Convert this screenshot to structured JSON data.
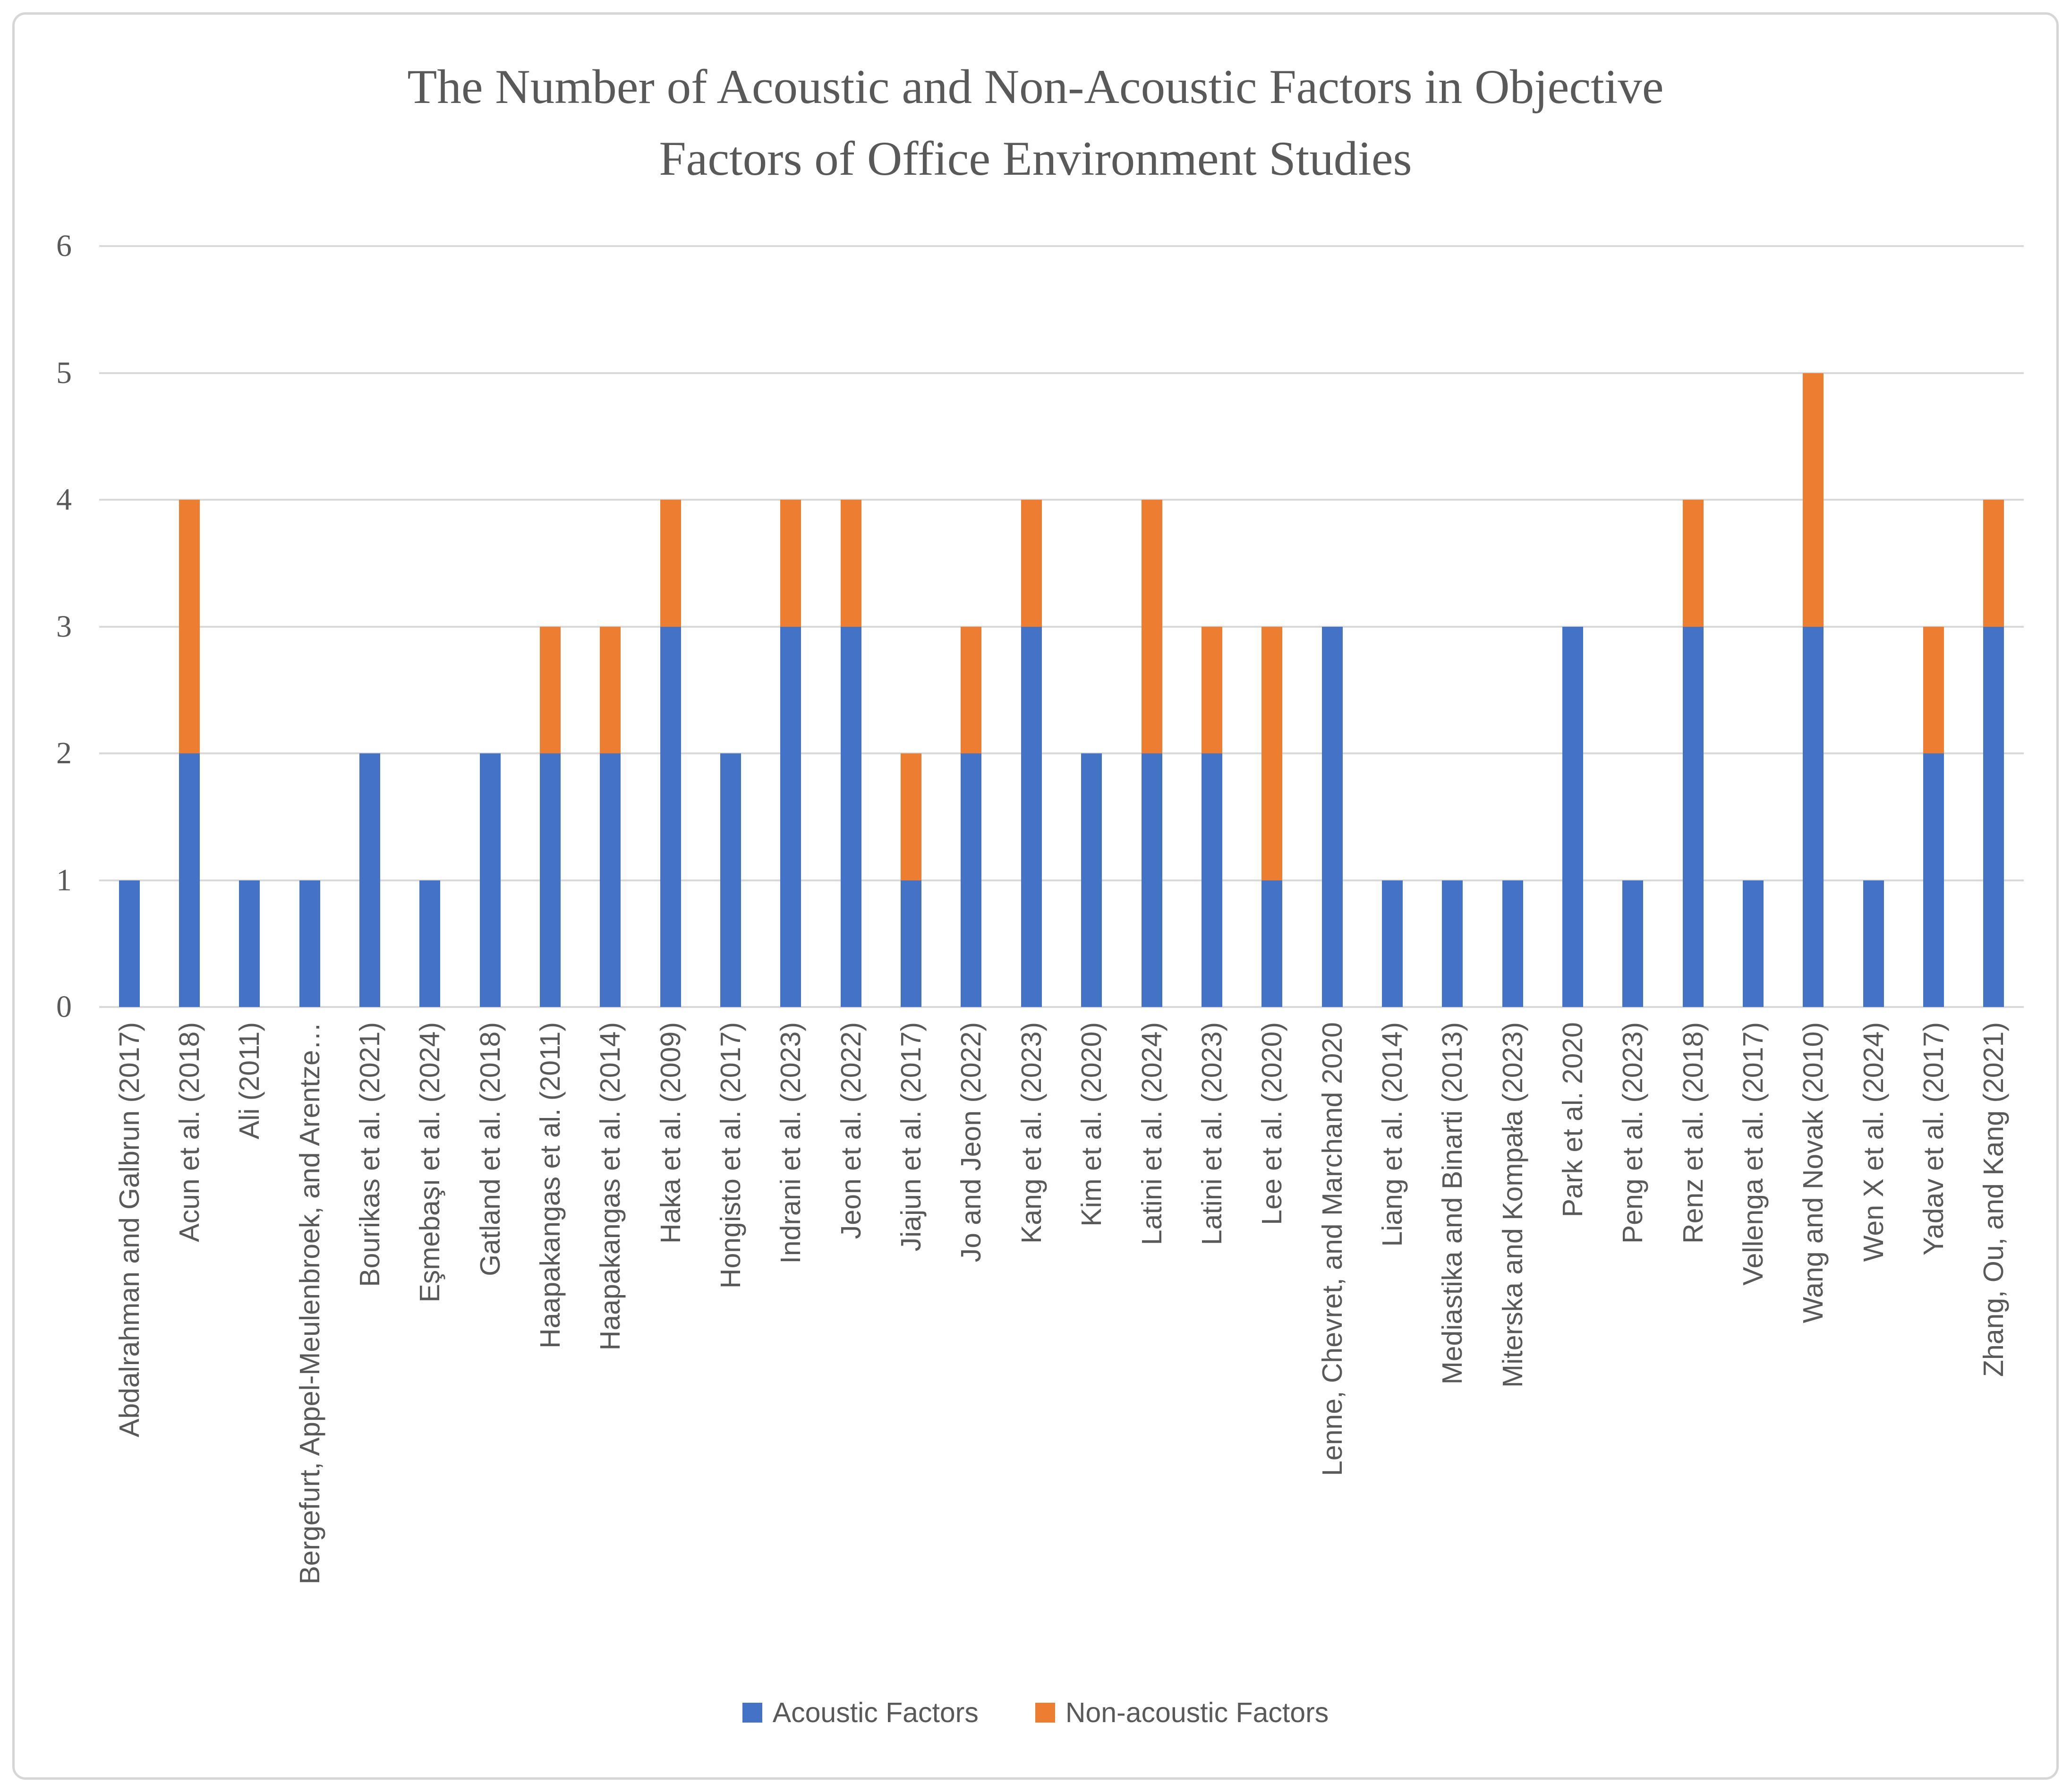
{
  "chart_data": {
    "type": "bar",
    "stacked": true,
    "title": "The Number of Acoustic and Non-Acoustic Factors in Objective Factors of Office Environment Studies",
    "title_lines": [
      "The Number of Acoustic and Non-Acoustic Factors in Objective",
      "Factors of Office Environment Studies"
    ],
    "categories": [
      "Abdalrahman and Galbrun (2017)",
      "Acun et al. (2018)",
      "Ali (2011)",
      "Bergefurt, Appel-Meulenbroek, and Arentze…",
      "Bourikas et al. (2021)",
      "Eşmebaşı et al. (2024)",
      "Gatland et al. (2018)",
      "Haapakangas et al. (2011)",
      "Haapakangas et al. (2014)",
      "Haka et al. (2009)",
      "Hongisto et al. (2017)",
      "Indrani et al. (2023)",
      "Jeon et al. (2022)",
      "Jiajun et al. (2017)",
      "Jo and Jeon (2022)",
      "Kang et al. (2023)",
      "Kim et al. (2020)",
      "Latini et al. (2024)",
      "Latini et al. (2023)",
      "Lee et al. (2020)",
      "Lenne, Chevret, and Marchand 2020",
      "Liang et al. (2014)",
      "Mediastika and Binarti (2013)",
      "Miterska and Kompała (2023)",
      "Park et al. 2020",
      "Peng et al. (2023)",
      "Renz et al. (2018)",
      "Vellenga et al. (2017)",
      "Wang and Novak (2010)",
      "Wen X et al. (2024)",
      "Yadav et al. (2017)",
      "Zhang, Ou, and Kang (2021)"
    ],
    "series": [
      {
        "name": "Acoustic Factors",
        "color": "#4472C4",
        "values": [
          1,
          2,
          1,
          1,
          2,
          1,
          2,
          2,
          2,
          3,
          2,
          3,
          3,
          1,
          2,
          3,
          2,
          2,
          2,
          1,
          3,
          1,
          1,
          1,
          3,
          1,
          3,
          1,
          3,
          1,
          2,
          3
        ]
      },
      {
        "name": "Non-acoustic Factors",
        "color": "#ED7D31",
        "values": [
          0,
          2,
          0,
          0,
          0,
          0,
          0,
          1,
          1,
          1,
          0,
          1,
          1,
          1,
          1,
          1,
          0,
          2,
          1,
          2,
          0,
          0,
          0,
          0,
          0,
          0,
          1,
          0,
          2,
          0,
          1,
          1
        ]
      }
    ],
    "ylim": [
      0,
      6
    ],
    "yticks": [
      0,
      1,
      2,
      3,
      4,
      5,
      6
    ],
    "grid": true,
    "legend_position": "bottom",
    "gridline_color": "#D9D9D9",
    "text_color": "#595959",
    "background_color": "#FFFFFF"
  }
}
